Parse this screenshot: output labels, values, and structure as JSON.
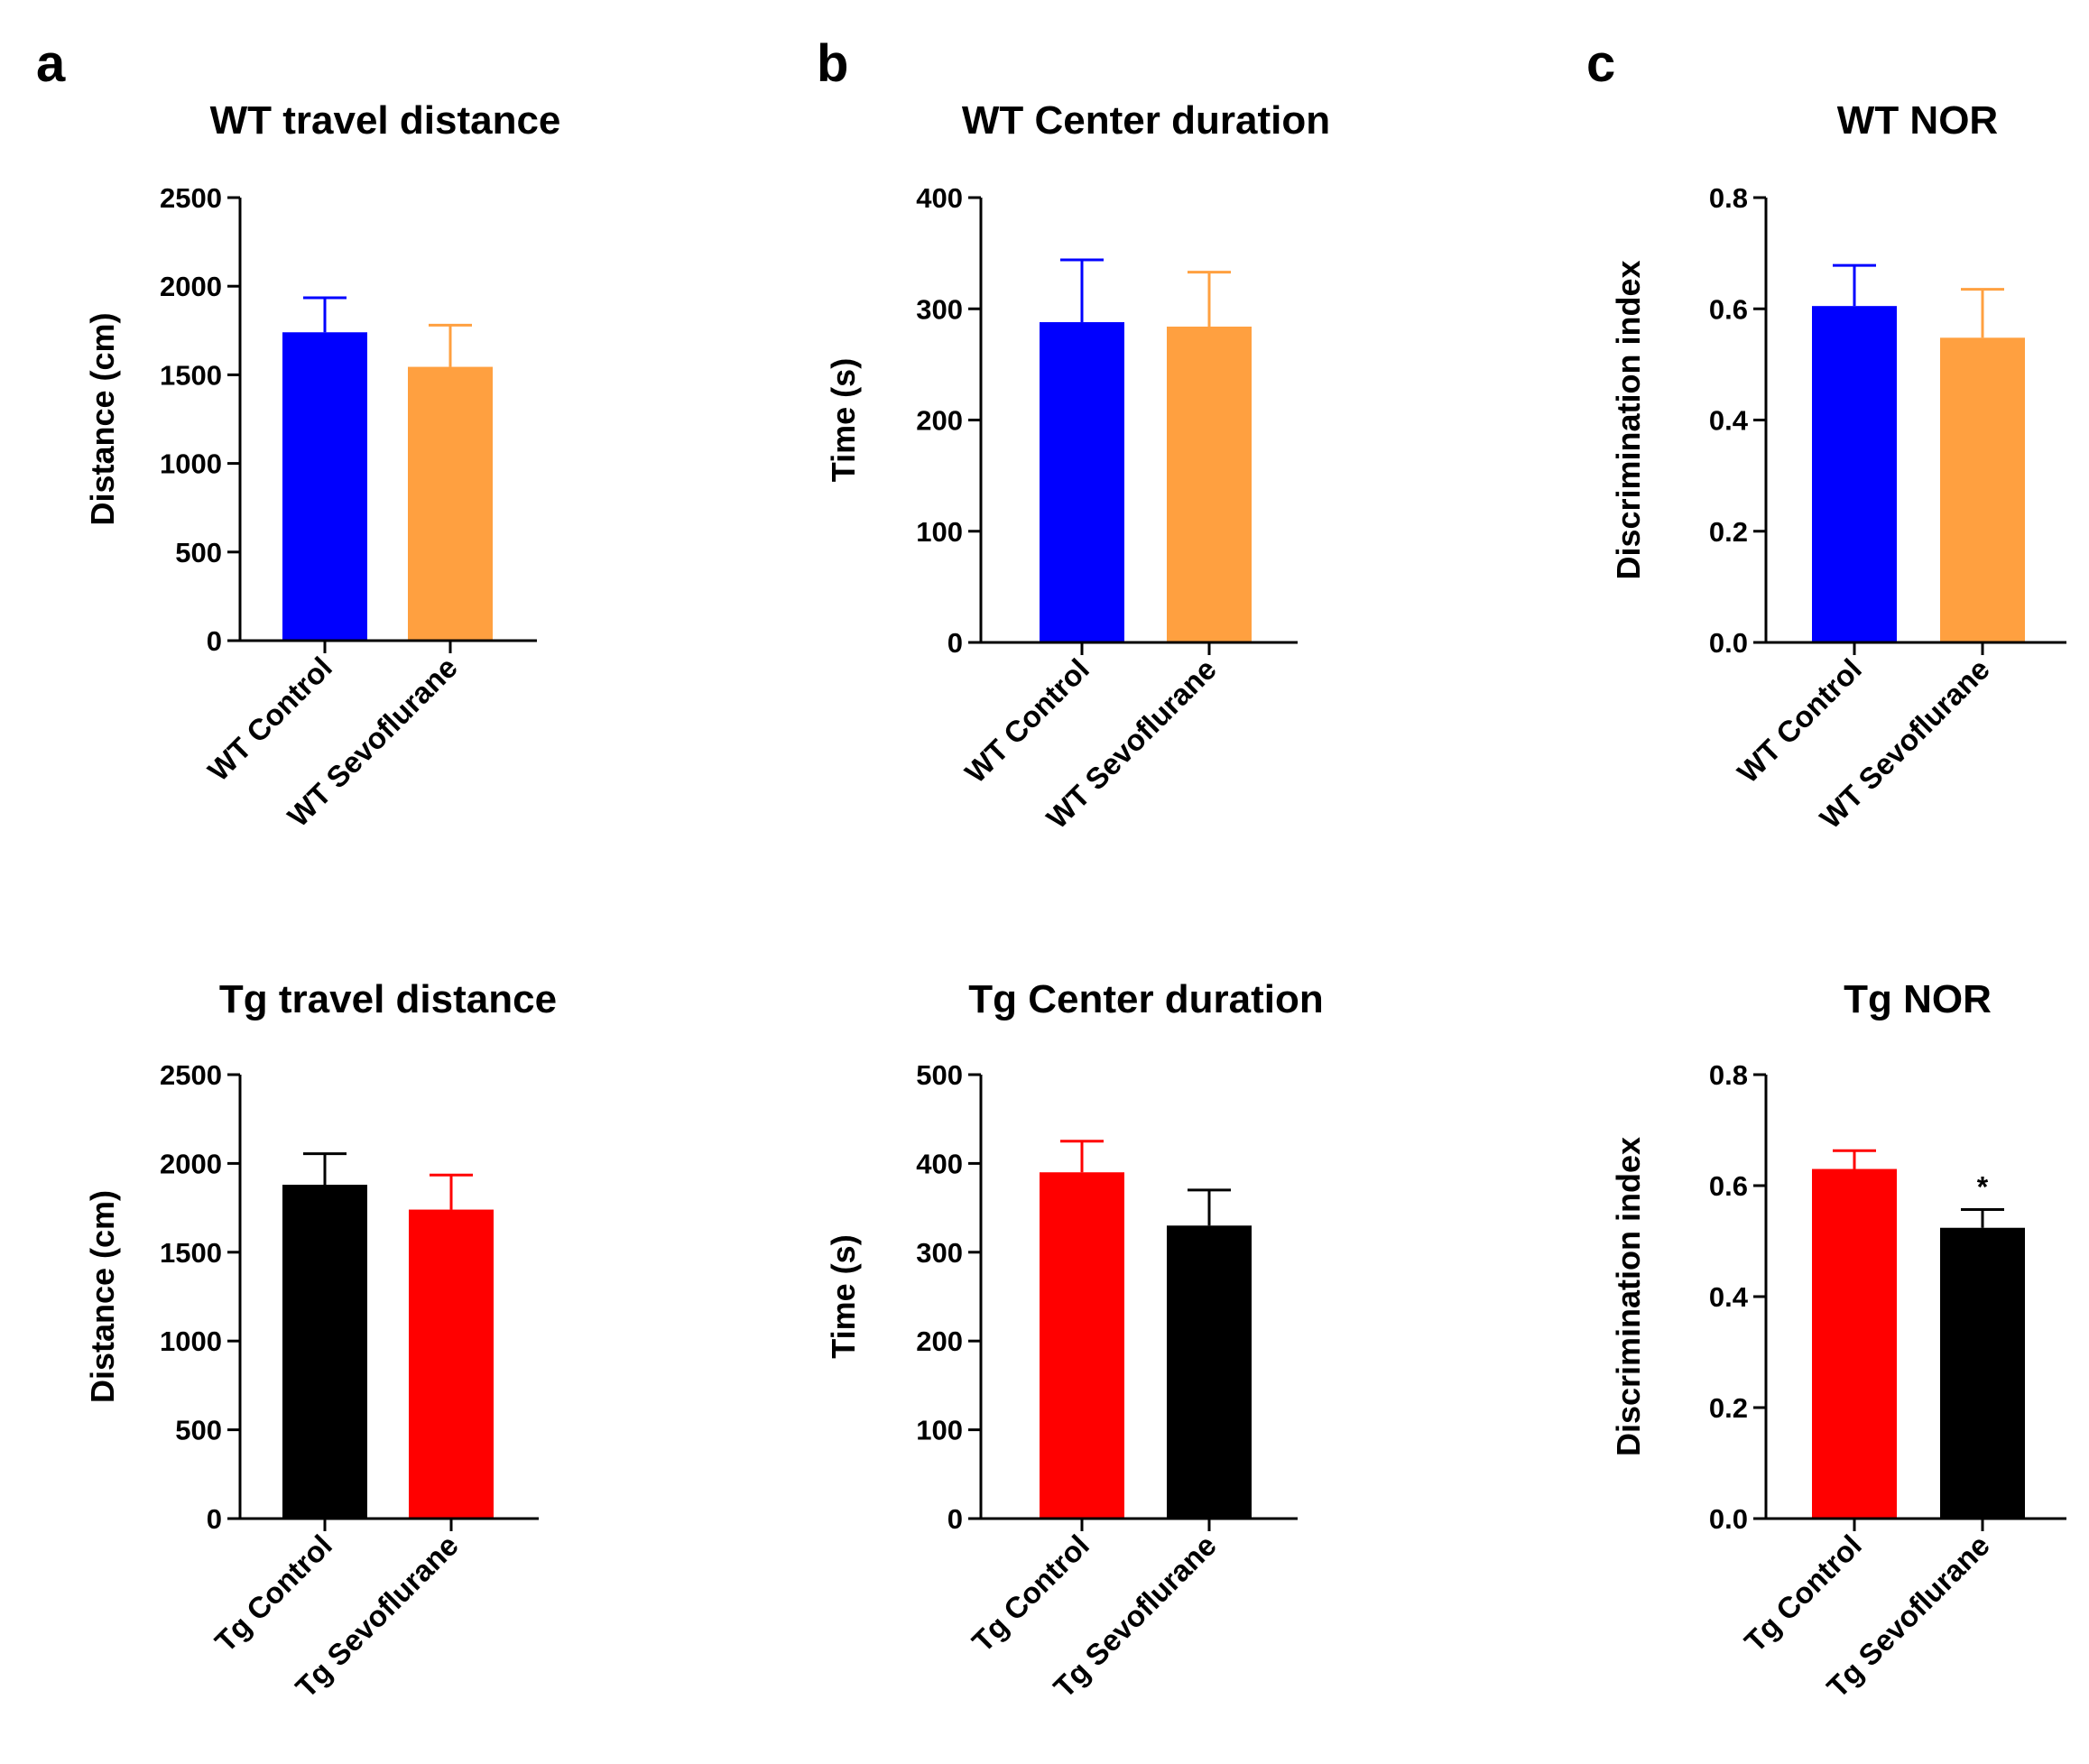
{
  "panel_labels": [
    "a",
    "b",
    "c"
  ],
  "chart_data": [
    {
      "type": "bar",
      "panel": "a",
      "title": "WT travel distance",
      "ylabel": "Distance (cm)",
      "xlabel": "",
      "ylim": [
        0,
        2500
      ],
      "yticks": [
        0,
        500,
        1000,
        1500,
        2000,
        2500
      ],
      "tick_labels": [
        "0",
        "500",
        "1000",
        "1500",
        "2000",
        "2500"
      ],
      "categories": [
        "WT Control",
        "WT Sevoflurane"
      ],
      "values": [
        1740,
        1545
      ],
      "errors": [
        195,
        235
      ],
      "colors": [
        "#0000FF",
        "#FFA040"
      ],
      "annotations": [
        "",
        ""
      ],
      "grid": false
    },
    {
      "type": "bar",
      "panel": "b",
      "title": "WT Center duration",
      "ylabel": "Time (s)",
      "xlabel": "",
      "ylim": [
        0,
        400
      ],
      "yticks": [
        0,
        100,
        200,
        300,
        400
      ],
      "tick_labels": [
        "0",
        "100",
        "200",
        "300",
        "400"
      ],
      "categories": [
        "WT Control",
        "WT Sevoflurane"
      ],
      "values": [
        288,
        284
      ],
      "errors": [
        56,
        49
      ],
      "colors": [
        "#0000FF",
        "#FFA040"
      ],
      "annotations": [
        "",
        ""
      ],
      "grid": false
    },
    {
      "type": "bar",
      "panel": "c",
      "title": "WT NOR",
      "ylabel": "Discrimination index",
      "xlabel": "",
      "ylim": [
        0,
        0.8
      ],
      "yticks": [
        0,
        0.2,
        0.4,
        0.6,
        0.8
      ],
      "tick_labels": [
        "0.0",
        "0.2",
        "0.4",
        "0.6",
        "0.8"
      ],
      "categories": [
        "WT Control",
        "WT Sevoflurane"
      ],
      "values": [
        0.605,
        0.548
      ],
      "errors": [
        0.073,
        0.087
      ],
      "colors": [
        "#0000FF",
        "#FFA040"
      ],
      "annotations": [
        "",
        ""
      ],
      "grid": false
    },
    {
      "type": "bar",
      "panel": "a",
      "title": "Tg travel distance",
      "ylabel": "Distance (cm)",
      "xlabel": "",
      "ylim": [
        0,
        2500
      ],
      "yticks": [
        0,
        500,
        1000,
        1500,
        2000,
        2500
      ],
      "tick_labels": [
        "0",
        "500",
        "1000",
        "1500",
        "2000",
        "2500"
      ],
      "categories": [
        "Tg Control",
        "Tg Sevoflurane"
      ],
      "values": [
        1880,
        1740
      ],
      "errors": [
        175,
        195
      ],
      "colors": [
        "#000000",
        "#FF0000"
      ],
      "annotations": [
        "",
        ""
      ],
      "grid": false
    },
    {
      "type": "bar",
      "panel": "b",
      "title": "Tg Center duration",
      "ylabel": "Time (s)",
      "xlabel": "",
      "ylim": [
        0,
        500
      ],
      "yticks": [
        0,
        100,
        200,
        300,
        400,
        500
      ],
      "tick_labels": [
        "0",
        "100",
        "200",
        "300",
        "400",
        "500"
      ],
      "categories": [
        "Tg Control",
        "Tg Sevoflurane"
      ],
      "values": [
        390,
        330
      ],
      "errors": [
        35,
        40
      ],
      "colors": [
        "#FF0000",
        "#000000"
      ],
      "annotations": [
        "",
        ""
      ],
      "grid": false
    },
    {
      "type": "bar",
      "panel": "c",
      "title": "Tg NOR",
      "ylabel": "Discrimination index",
      "xlabel": "",
      "ylim": [
        0,
        0.8
      ],
      "yticks": [
        0,
        0.2,
        0.4,
        0.6,
        0.8
      ],
      "tick_labels": [
        "0.0",
        "0.2",
        "0.4",
        "0.6",
        "0.8"
      ],
      "categories": [
        "Tg Control",
        "Tg Sevoflurane"
      ],
      "values": [
        0.63,
        0.524
      ],
      "errors": [
        0.033,
        0.033
      ],
      "colors": [
        "#FF0000",
        "#000000"
      ],
      "annotations": [
        "",
        "*"
      ],
      "grid": false
    }
  ]
}
